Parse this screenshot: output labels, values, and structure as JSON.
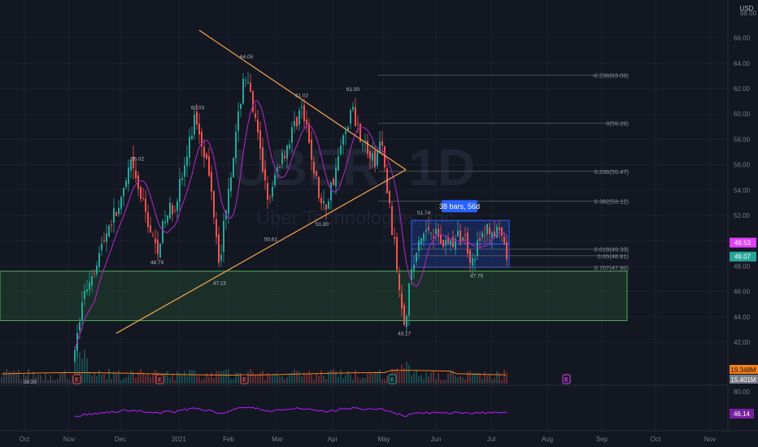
{
  "chart_data": {
    "type": "candlestick",
    "watermark": {
      "symbol": "UBER, 1D",
      "name": "Uber Technologies, Inc."
    },
    "currency": "USD",
    "y_range": [
      40.5,
      68.5
    ],
    "y_ticks": [
      "42.00",
      "44.00",
      "46.00",
      "48.00",
      "50.00",
      "52.00",
      "54.00",
      "56.00",
      "58.00",
      "60.00",
      "62.00",
      "64.00",
      "66.00"
    ],
    "y_top_label": "68.00",
    "x_labels": [
      "Oct",
      "Nov",
      "Dec",
      "2021",
      "Feb",
      "Mar",
      "Apr",
      "May",
      "Jun",
      "Jul",
      "Aug",
      "Sep",
      "Oct",
      "Nov"
    ],
    "price_badges": [
      {
        "label": "49.53",
        "value": 49.53,
        "color": "#e040fb"
      },
      {
        "label": "49.07",
        "value": 49.07,
        "color": "#26a69a"
      }
    ],
    "fib_levels": [
      {
        "label": "-0.236(63.06)",
        "value": 63.06
      },
      {
        "label": "0(59.26)",
        "value": 59.26
      },
      {
        "label": "0.236(55.47)",
        "value": 55.47
      },
      {
        "label": "0.382(53.12)",
        "value": 53.12
      },
      {
        "label": "0.618(49.33)",
        "value": 49.33
      },
      {
        "label": "0.65(48.81)",
        "value": 48.81
      },
      {
        "label": "0.707(47.90)",
        "value": 47.9
      }
    ],
    "price_labels": [
      {
        "label": "64.05",
        "value": 64.05,
        "pos": "above"
      },
      {
        "label": "61.02",
        "value": 61.02,
        "pos": "above"
      },
      {
        "label": "61.50",
        "value": 61.5,
        "pos": "above"
      },
      {
        "label": "60.03",
        "value": 60.03,
        "pos": "above"
      },
      {
        "label": "56.02",
        "value": 56.02,
        "pos": "above"
      },
      {
        "label": "51.74",
        "value": 51.74,
        "pos": "above"
      },
      {
        "label": "48.79",
        "value": 48.79,
        "pos": "below"
      },
      {
        "label": "47.15",
        "value": 47.15,
        "pos": "below"
      },
      {
        "label": "50.61",
        "value": 50.61,
        "pos": "below"
      },
      {
        "label": "51.80",
        "value": 51.8,
        "pos": "below"
      },
      {
        "label": "43.17",
        "value": 43.17,
        "pos": "below"
      },
      {
        "label": "47.75",
        "value": 47.75,
        "pos": "below"
      },
      {
        "label": "38.35",
        "value": 38.35,
        "pos": "left"
      }
    ],
    "range_box": {
      "label": "38 bars, 56d",
      "top": 51.6,
      "bottom": 47.9
    },
    "support_zone": {
      "top": 47.6,
      "bottom": 43.7
    },
    "triangle": {
      "apex": 55.6,
      "upper_start": 66.6,
      "lower_start": 42.7
    },
    "volume": {
      "label": "19.348M",
      "ma_label": "15.401M"
    },
    "oscillator": {
      "label": "46.14",
      "level": "80.00",
      "value": 46.14
    },
    "earnings_markers": [
      "E",
      "E",
      "E",
      "E",
      "E"
    ],
    "colors": {
      "up": "#26a69a",
      "down": "#ef5350",
      "ma": "#9c27b0",
      "triangle": "#f7a64c",
      "zone": "#4caf50",
      "range": "#2962ff",
      "volume_ma": "#f57f17"
    }
  }
}
